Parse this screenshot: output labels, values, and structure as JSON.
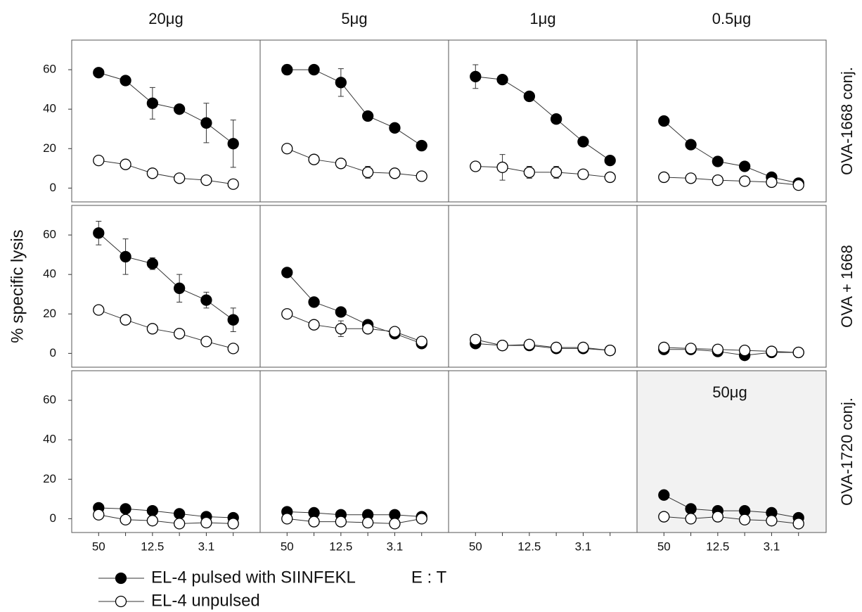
{
  "chart_data": {
    "type": "line",
    "ylabel": "% specific lysis",
    "xlabel": "E : T",
    "column_titles": [
      "20μg",
      "5μg",
      "1μg",
      "0.5μg"
    ],
    "row_titles": [
      "OVA-1668 conj.",
      "OVA + 1668",
      "OVA-1720 conj."
    ],
    "categories": [
      "50",
      null,
      "12.5",
      null,
      "3.1",
      null
    ],
    "ylim": [
      -7,
      75
    ],
    "yticks": [
      0,
      20,
      40,
      60
    ],
    "series": [
      {
        "name": "EL-4 pulsed with SIINFEKL",
        "color": "#000000"
      },
      {
        "name": "EL-4 unpulsed",
        "color": "#ffffff"
      }
    ],
    "panels": [
      {
        "series": [
          {
            "values": [
              58.5,
              54.5,
              43,
              40,
              33,
              22.5
            ],
            "errors": [
              null,
              null,
              8,
              null,
              10,
              12
            ]
          },
          {
            "values": [
              14,
              12,
              7.5,
              5,
              4,
              2
            ],
            "errors": [
              null,
              null,
              null,
              null,
              2,
              null
            ]
          }
        ]
      },
      {
        "series": [
          {
            "values": [
              60,
              60,
              53.5,
              36.5,
              30.5,
              21.5
            ],
            "errors": [
              2.5,
              null,
              7,
              null,
              null,
              null
            ]
          },
          {
            "values": [
              20,
              14.5,
              12.5,
              8,
              7.5,
              6
            ],
            "errors": [
              null,
              null,
              null,
              3,
              null,
              null
            ]
          }
        ]
      },
      {
        "series": [
          {
            "values": [
              56.5,
              55,
              46.5,
              35,
              23.5,
              14
            ],
            "errors": [
              6,
              null,
              null,
              null,
              null,
              null
            ]
          },
          {
            "values": [
              11,
              10.5,
              8,
              8,
              7,
              5.5
            ],
            "errors": [
              null,
              6.5,
              3,
              3,
              null,
              null
            ]
          }
        ]
      },
      {
        "series": [
          {
            "values": [
              34,
              22,
              13.5,
              11,
              5.5,
              2.5
            ]
          },
          {
            "values": [
              5.5,
              5,
              4,
              3.5,
              3,
              1.5
            ]
          }
        ]
      },
      {
        "series": [
          {
            "values": [
              61,
              49,
              45.5,
              33,
              27,
              17
            ],
            "errors": [
              6,
              9,
              3,
              7,
              4,
              6
            ]
          },
          {
            "values": [
              22,
              17,
              12.5,
              10,
              6,
              2.5
            ]
          }
        ]
      },
      {
        "series": [
          {
            "values": [
              41,
              26,
              21,
              14.5,
              10,
              5
            ]
          },
          {
            "values": [
              20,
              14.5,
              12.5,
              12.5,
              11,
              6
            ],
            "errors": [
              null,
              null,
              4,
              null,
              null,
              null
            ]
          }
        ]
      },
      {
        "series": [
          {
            "values": [
              5,
              4,
              4,
              2.5,
              2.5,
              1.5
            ]
          },
          {
            "values": [
              7,
              4,
              4.5,
              3,
              3,
              1.5
            ]
          }
        ]
      },
      {
        "series": [
          {
            "values": [
              2,
              2,
              1,
              -1,
              0.5,
              0.5
            ]
          },
          {
            "values": [
              3,
              2.5,
              2,
              1.5,
              1,
              0.5
            ]
          }
        ]
      },
      {
        "series": [
          {
            "values": [
              5.5,
              5,
              4,
              2.5,
              1,
              0.5
            ]
          },
          {
            "values": [
              2,
              -0.5,
              -1,
              -2.5,
              -2,
              -2.5
            ]
          }
        ]
      },
      {
        "series": [
          {
            "values": [
              3.5,
              3,
              2,
              2,
              2,
              1
            ]
          },
          {
            "values": [
              0,
              -1.5,
              -1.5,
              -2,
              -2.5,
              0
            ]
          }
        ]
      },
      {
        "series": []
      },
      {
        "annotation": "50μg",
        "background": "#f2f2f2",
        "series": [
          {
            "values": [
              12,
              5,
              4,
              4,
              3,
              0.5
            ]
          },
          {
            "values": [
              1,
              0,
              1,
              -0.5,
              -1,
              -2.5
            ]
          }
        ]
      }
    ]
  }
}
